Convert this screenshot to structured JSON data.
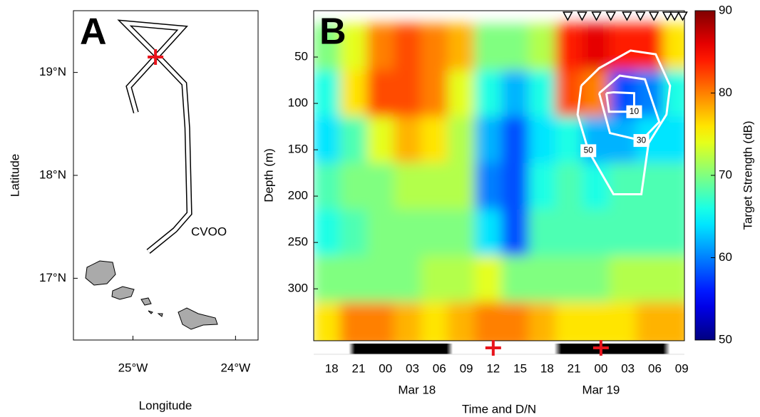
{
  "chart_data": [
    {
      "type": "map",
      "label": "A",
      "xlabel": "Longitude",
      "ylabel": "Latitude",
      "xlim": [
        -25.58,
        -23.78
      ],
      "ylim": [
        16.4,
        19.6
      ],
      "xticks": [
        {
          "value": -25,
          "label": "25°W"
        },
        {
          "value": -24,
          "label": "24°W"
        }
      ],
      "yticks": [
        {
          "value": 17,
          "label": "17°N"
        },
        {
          "value": 18,
          "label": "18°N"
        },
        {
          "value": 19,
          "label": "19°N"
        }
      ],
      "track": {
        "lon": [
          -24.85,
          -24.59,
          -24.45,
          -24.47,
          -24.5,
          -24.75,
          -25.08,
          -24.52,
          -25.04,
          -24.97
        ],
        "lat": [
          17.26,
          17.47,
          17.63,
          18.46,
          18.89,
          19.15,
          19.48,
          19.43,
          18.86,
          18.61
        ]
      },
      "marker": {
        "lon": -24.78,
        "lat": 19.15,
        "color": "#e8141c"
      },
      "station_label": "CVOO"
    },
    {
      "type": "heatmap",
      "label": "B",
      "xlabel": "Time and D/N",
      "ylabel": "Depth (m)",
      "colorbar_label": "Target Strength (dB)",
      "colormap": "jet",
      "xlim": [
        16,
        57.3
      ],
      "ylim": [
        0,
        356
      ],
      "y_inverted": true,
      "xticks": [
        18,
        21,
        {
          "value": 24,
          "label": "00"
        },
        {
          "value": 27,
          "label": "03"
        },
        {
          "value": 30,
          "label": "06"
        },
        {
          "value": 33,
          "label": "09"
        },
        {
          "value": 36,
          "label": "12"
        },
        {
          "value": 39,
          "label": "15"
        },
        {
          "value": 42,
          "label": "18"
        },
        {
          "value": 45,
          "label": "21"
        },
        {
          "value": 48,
          "label": "00"
        },
        {
          "value": 51,
          "label": "03"
        },
        {
          "value": 54,
          "label": "06"
        },
        {
          "value": 57,
          "label": "09"
        }
      ],
      "date_ticks": [
        {
          "value": 27.5,
          "label": "Mar 18"
        },
        {
          "value": 48,
          "label": "Mar 19"
        }
      ],
      "yticks": [
        50,
        100,
        150,
        200,
        250,
        300
      ],
      "clim": [
        50,
        90
      ],
      "cticks": [
        50,
        60,
        70,
        80,
        90
      ],
      "x": [
        17.5,
        20.5,
        23.5,
        26.5,
        29.5,
        32.5,
        35.5,
        38.5,
        41.5,
        44.5,
        47.5,
        50.5,
        53.5,
        56.5
      ],
      "y": [
        40,
        90,
        140,
        190,
        240,
        290,
        340
      ],
      "z": [
        [
          70,
          74,
          80,
          82,
          80,
          78,
          70,
          70,
          72,
          84,
          86,
          84,
          84,
          76
        ],
        [
          66,
          76,
          82,
          82,
          80,
          74,
          66,
          62,
          66,
          82,
          80,
          58,
          60,
          66
        ],
        [
          64,
          68,
          74,
          78,
          76,
          72,
          62,
          58,
          64,
          66,
          62,
          62,
          64,
          64
        ],
        [
          68,
          70,
          70,
          72,
          72,
          72,
          60,
          58,
          66,
          68,
          66,
          68,
          68,
          68
        ],
        [
          66,
          68,
          70,
          70,
          70,
          70,
          64,
          58,
          68,
          68,
          68,
          68,
          68,
          68
        ],
        [
          70,
          70,
          70,
          70,
          72,
          72,
          74,
          70,
          70,
          70,
          70,
          72,
          72,
          72
        ],
        [
          76,
          80,
          80,
          78,
          76,
          78,
          80,
          80,
          78,
          76,
          76,
          76,
          78,
          78
        ]
      ],
      "contours": [
        {
          "level": 10,
          "hour": [
            48.6,
            49.4,
            51.7,
            51.7,
            48.9,
            48.6
          ],
          "depth": [
            89,
            88,
            89,
            109,
            109,
            89
          ]
        },
        {
          "level": 30,
          "hour": [
            47.8,
            50.1,
            52.9,
            54.5,
            52.5,
            49.0,
            47.8
          ],
          "depth": [
            89,
            70,
            74,
            120,
            140,
            132,
            89
          ]
        },
        {
          "level": 50,
          "hour": [
            45.8,
            47.8,
            51.3,
            54.1,
            55.7,
            55.3,
            53.3,
            52.5,
            49.4,
            46.6,
            45.4,
            45.8
          ],
          "depth": [
            81,
            62,
            43,
            47,
            81,
            112,
            143,
            198,
            198,
            151,
            112,
            81
          ]
        }
      ],
      "triangles": [
        44.3,
        45.9,
        47.5,
        49.1,
        50.9,
        52.4,
        53.9,
        55.4,
        56.2,
        57.1
      ],
      "markers": [
        36,
        48
      ],
      "marker_color": "#e8141c",
      "night": [
        [
          19.9,
          31.5
        ],
        [
          42.8,
          55.7
        ]
      ]
    }
  ]
}
